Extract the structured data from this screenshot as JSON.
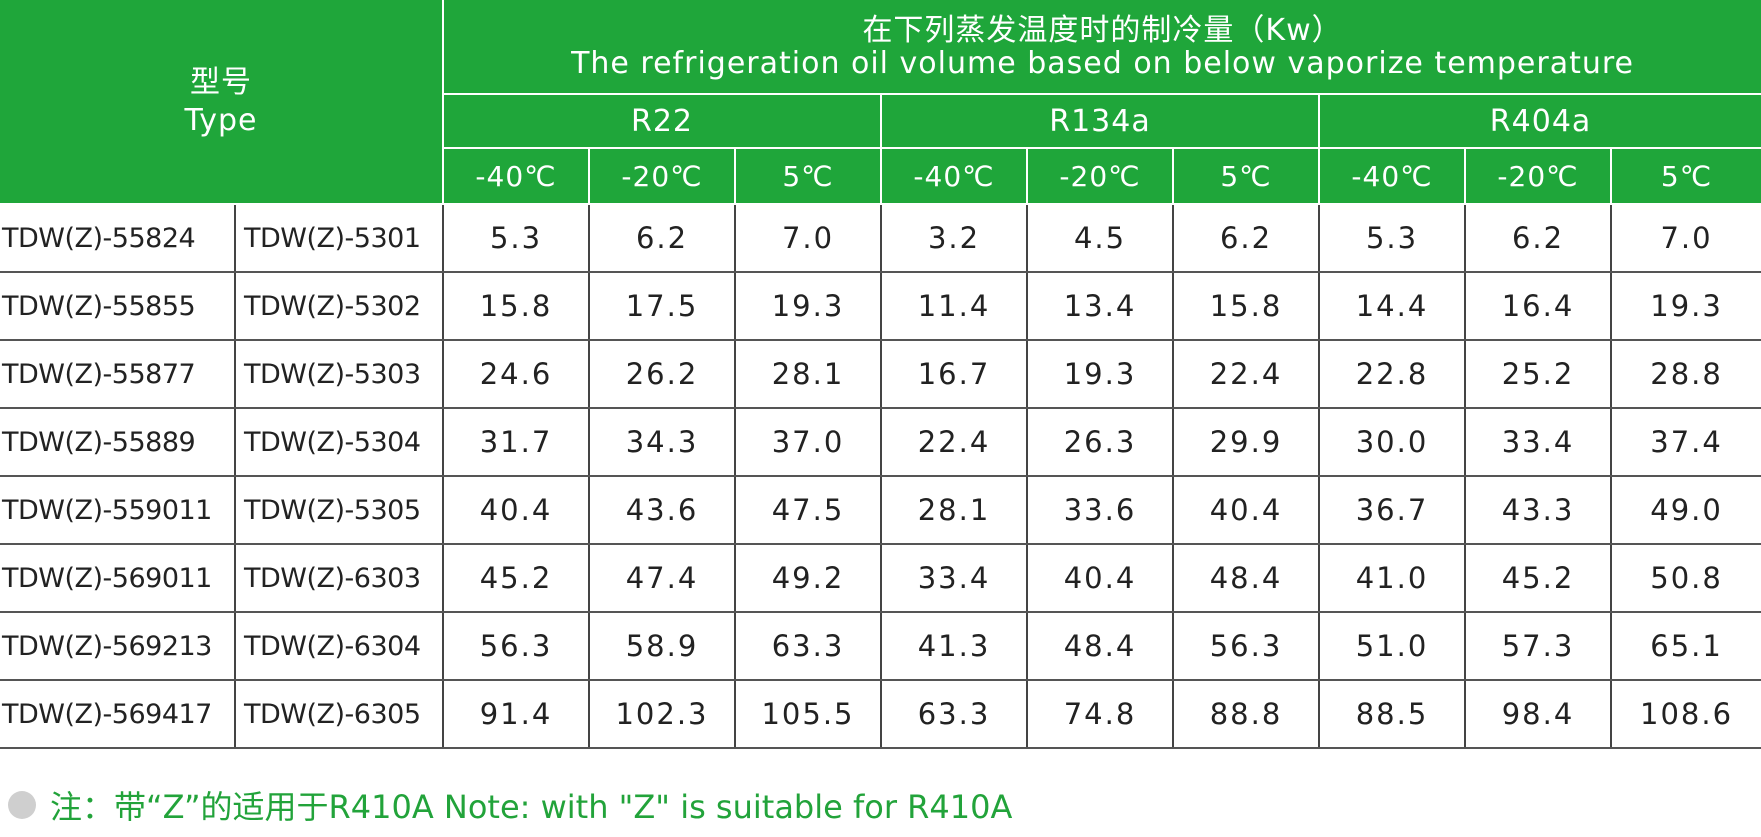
{
  "header": {
    "type_cn": "型号",
    "type_en": "Type",
    "capacity_cn": "在下列蒸发温度时的制冷量（Kw）",
    "capacity_en": "The refrigeration oil volume based on below vaporize temperature",
    "refrigerants": [
      "R22",
      "R134a",
      "R404a"
    ],
    "temps": [
      "-40℃",
      "-20℃",
      "5℃",
      "-40℃",
      "-20℃",
      "5℃",
      "-40℃",
      "-20℃",
      "5℃"
    ]
  },
  "rows": [
    {
      "model_a": "TDW(Z)-55824",
      "model_b": "TDW(Z)-5301",
      "values": [
        "5.3",
        "6.2",
        "7.0",
        "3.2",
        "4.5",
        "6.2",
        "5.3",
        "6.2",
        "7.0"
      ]
    },
    {
      "model_a": "TDW(Z)-55855",
      "model_b": "TDW(Z)-5302",
      "values": [
        "15.8",
        "17.5",
        "19.3",
        "11.4",
        "13.4",
        "15.8",
        "14.4",
        "16.4",
        "19.3"
      ]
    },
    {
      "model_a": "TDW(Z)-55877",
      "model_b": "TDW(Z)-5303",
      "values": [
        "24.6",
        "26.2",
        "28.1",
        "16.7",
        "19.3",
        "22.4",
        "22.8",
        "25.2",
        "28.8"
      ]
    },
    {
      "model_a": "TDW(Z)-55889",
      "model_b": "TDW(Z)-5304",
      "values": [
        "31.7",
        "34.3",
        "37.0",
        "22.4",
        "26.3",
        "29.9",
        "30.0",
        "33.4",
        "37.4"
      ]
    },
    {
      "model_a": "TDW(Z)-559011",
      "model_b": "TDW(Z)-5305",
      "values": [
        "40.4",
        "43.6",
        "47.5",
        "28.1",
        "33.6",
        "40.4",
        "36.7",
        "43.3",
        "49.0"
      ]
    },
    {
      "model_a": "TDW(Z)-569011",
      "model_b": "TDW(Z)-6303",
      "values": [
        "45.2",
        "47.4",
        "49.2",
        "33.4",
        "40.4",
        "48.4",
        "41.0",
        "45.2",
        "50.8"
      ]
    },
    {
      "model_a": "TDW(Z)-569213",
      "model_b": "TDW(Z)-6304",
      "values": [
        "56.3",
        "58.9",
        "63.3",
        "41.3",
        "48.4",
        "56.3",
        "51.0",
        "57.3",
        "65.1"
      ]
    },
    {
      "model_a": "TDW(Z)-569417",
      "model_b": "TDW(Z)-6305",
      "values": [
        "91.4",
        "102.3",
        "105.5",
        "63.3",
        "74.8",
        "88.8",
        "88.5",
        "98.4",
        "108.6"
      ]
    }
  ],
  "note": {
    "text": "注：带“Z”的适用于R410A   Note: with \"Z\" is suitable for R410A"
  },
  "colors": {
    "header_bg": "#1fa63a",
    "header_text": "#ffffff",
    "note_text": "#22a33a",
    "bullet": "#cfcfcf"
  }
}
